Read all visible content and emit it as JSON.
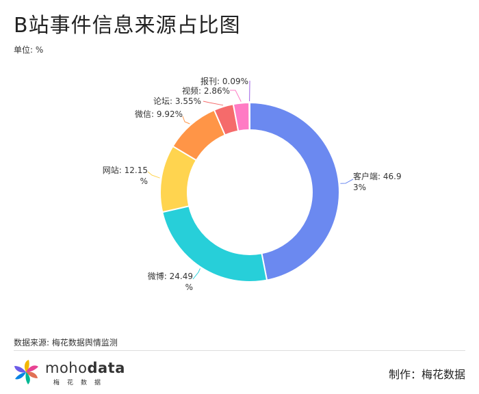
{
  "header": {
    "title": "B站事件信息来源占比图",
    "unit": "单位: %"
  },
  "footer": {
    "source": "数据来源: 梅花数据舆情监测",
    "brand_light": "moho",
    "brand_bold": "data",
    "brand_sub": "梅花数据",
    "maker": "制作：梅花数据"
  },
  "colors": {
    "客户端": "#6b89f0",
    "微博": "#27cfd9",
    "网站": "#ffd44f",
    "微信": "#ff9547",
    "论坛": "#f56b6b",
    "视频": "#ff7bc4",
    "报刊": "#9b5de5"
  },
  "chart_data": {
    "type": "pie",
    "variant": "donut",
    "title": "B站事件信息来源占比图",
    "unit": "%",
    "categories": [
      "客户端",
      "微博",
      "网站",
      "微信",
      "论坛",
      "视频",
      "报刊"
    ],
    "values": [
      46.93,
      24.49,
      12.15,
      9.92,
      3.55,
      2.86,
      0.09
    ],
    "labels": [
      [
        "客户端: 46.9",
        "3%"
      ],
      [
        "微博: 24.49",
        "%"
      ],
      [
        "网站: 12.15",
        "%"
      ],
      [
        "微信: 9.92%"
      ],
      [
        "论坛: 3.55%"
      ],
      [
        "视频: 2.86%"
      ],
      [
        "报刊: 0.09%"
      ]
    ]
  }
}
